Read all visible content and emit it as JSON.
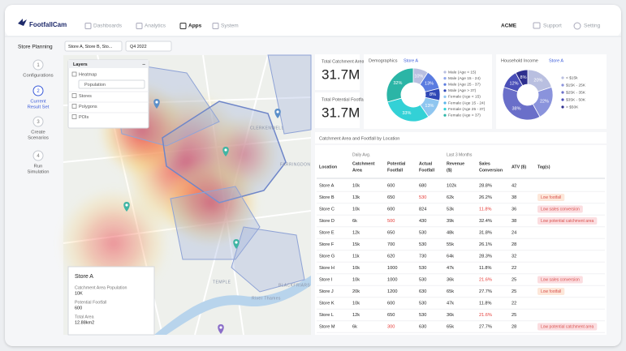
{
  "nav": {
    "brand": "FootfallCam",
    "items": [
      "Dashboards",
      "Analytics",
      "Apps",
      "System"
    ],
    "account": "ACME",
    "support": "Support",
    "setting": "Setting"
  },
  "sidebar": {
    "title": "Store Planning",
    "steps": [
      {
        "num": "1",
        "label": [
          "Configurations"
        ]
      },
      {
        "num": "2",
        "label": [
          "Current",
          "Result Set"
        ]
      },
      {
        "num": "3",
        "label": [
          "Create",
          "Scenarios"
        ]
      },
      {
        "num": "4",
        "label": [
          "Run",
          "Simulation"
        ]
      }
    ]
  },
  "filters": {
    "stores": "Store A, Store B, Sto...",
    "period": "Q4 2022"
  },
  "layers": {
    "title": "Layers",
    "heatmap": "Heatmap",
    "heatmap_option": "Population",
    "items": [
      "Stores",
      "Polygons",
      "POIs"
    ]
  },
  "map_labels": [
    "CLERKENWELL",
    "FARRINGDON",
    "BLACKFRIARS",
    "TEMPLE",
    "River Thames"
  ],
  "store_card": {
    "title": "Store A",
    "fields": [
      {
        "label": "Catchment Area Population",
        "value": "10K"
      },
      {
        "label": "Potential Footfall",
        "value": "600"
      },
      {
        "label": "Total Area",
        "value": "12.88km2"
      }
    ]
  },
  "kpis": [
    {
      "label": "Total Catchment Area",
      "value": "31.7M"
    },
    {
      "label": "Total Potential Footfall",
      "value": "31.7M"
    }
  ],
  "demographics": {
    "title": "Demographics",
    "store": "Store A",
    "values": [
      10,
      13,
      8,
      13,
      33,
      32
    ],
    "value_labels": [
      "10%",
      "13%",
      "8%",
      "13%",
      "33%",
      "32%"
    ],
    "colors": [
      "#b9bfe0",
      "#5a7be0",
      "#2f47b5",
      "#8fc6f0",
      "#33d1d6",
      "#2bb5a6"
    ],
    "legend": [
      {
        "name": "Male (Age < 15)",
        "color": "#b9bfe0"
      },
      {
        "name": "Male (Age 15 - 24)",
        "color": "#8fa6ec"
      },
      {
        "name": "Male (Age 25 - 37)",
        "color": "#5a7be0"
      },
      {
        "name": "Male (Age > 37)",
        "color": "#2f47b5"
      },
      {
        "name": "Female (Age < 15)",
        "color": "#8fc6f0"
      },
      {
        "name": "Female (Age 15 - 24)",
        "color": "#55b4ea"
      },
      {
        "name": "Female (Age 25 - 37)",
        "color": "#33d1d6"
      },
      {
        "name": "Female (Age > 37)",
        "color": "#2bb5a6"
      }
    ]
  },
  "income": {
    "title": "Household Income",
    "store": "Store A",
    "values": [
      20,
      22,
      38,
      12,
      8
    ],
    "value_labels": [
      "20%",
      "22%",
      "38%",
      "12%",
      "8%"
    ],
    "colors": [
      "#b9bfe0",
      "#8a93dc",
      "#6a6fc9",
      "#4a4fb8",
      "#2e2f8e"
    ],
    "legend": [
      "< $15k",
      "$15K - 25K",
      "$25K - 35K",
      "$35K - 50K",
      "> $50K"
    ]
  },
  "table": {
    "title": "Catchment Area and Footfall by Location",
    "groups": [
      "Daily Avg.",
      "Last 3 Months"
    ],
    "columns": [
      [
        "Location"
      ],
      [
        "Catchment",
        "Area"
      ],
      [
        "Potential",
        "Footfall"
      ],
      [
        "Actual",
        "Footfall"
      ],
      [
        "Revenue",
        "($)"
      ],
      [
        "Sales",
        "Conversion"
      ],
      [
        "ATV ($)"
      ],
      [
        "Tag(s)"
      ]
    ],
    "rows": [
      {
        "cells": [
          "Store A",
          "10k",
          "600",
          "680",
          "102k",
          "28.8%",
          "42"
        ]
      },
      {
        "cells": [
          "Store B",
          "13k",
          "650",
          {
            "text": "530",
            "color": "#e53935"
          },
          "62k",
          "26.2%",
          "38"
        ],
        "tag": "Low footfall",
        "tag_color": "#fde7d9"
      },
      {
        "cells": [
          "Store C",
          "10k",
          "600",
          "824",
          "53k",
          {
            "text": "11.8%",
            "color": "#e53935"
          },
          "36"
        ],
        "tag": "Low sales conversion",
        "tag_color": "#fbdde0"
      },
      {
        "cells": [
          "Store D",
          "6k",
          {
            "text": "500",
            "color": "#e53935"
          },
          "430",
          "39k",
          "32.4%",
          "38"
        ],
        "tag": "Low potential catchment area",
        "tag_color": "#fbdde0"
      },
      {
        "cells": [
          "Store E",
          "12k",
          "650",
          "530",
          "48k",
          "31.8%",
          "24"
        ]
      },
      {
        "cells": [
          "Store F",
          "15k",
          "700",
          "530",
          "55k",
          "26.1%",
          "28"
        ]
      },
      {
        "cells": [
          "Store G",
          "11k",
          "620",
          "730",
          "64k",
          "28.3%",
          "32"
        ]
      },
      {
        "cells": [
          "Store H",
          "10k",
          "1000",
          "530",
          "47k",
          "11.8%",
          "22"
        ]
      },
      {
        "cells": [
          "Store I",
          "10k",
          "1000",
          "530",
          "36k",
          {
            "text": "21.6%",
            "color": "#e53935"
          },
          "25"
        ],
        "tag": "Low sales conversion",
        "tag_color": "#fbdde0"
      },
      {
        "cells": [
          "Store J",
          "20k",
          "1200",
          "630",
          "65k",
          "27.7%",
          "25"
        ],
        "tag": "Low footfall",
        "tag_color": "#fde7d9"
      },
      {
        "cells": [
          "Store K",
          "10k",
          "600",
          "530",
          "47k",
          "11.8%",
          "22"
        ]
      },
      {
        "cells": [
          "Store L",
          "12k",
          "650",
          "530",
          "36k",
          {
            "text": "21.6%",
            "color": "#e53935"
          },
          "25"
        ]
      },
      {
        "cells": [
          "Store M",
          "6k",
          {
            "text": "300",
            "color": "#e53935"
          },
          "630",
          "65k",
          "27.7%",
          "28"
        ],
        "tag": "Low potential catchment area",
        "tag_color": "#fbdde0"
      }
    ]
  }
}
